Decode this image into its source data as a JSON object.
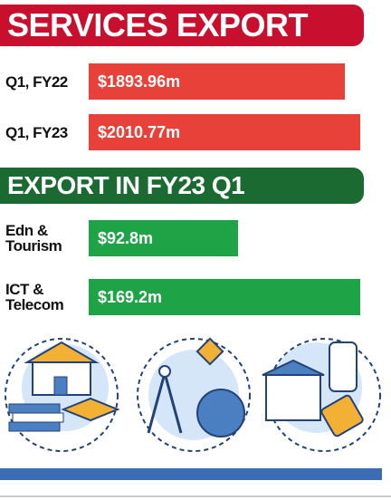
{
  "chart_data": [
    {
      "type": "bar",
      "title": "SERVICES EXPORT",
      "categories": [
        "Q1, FY22",
        "Q1, FY23"
      ],
      "values": [
        1893.96,
        2010.77
      ],
      "value_labels": [
        "$1893.96m",
        "$2010.77m"
      ],
      "color": "#e8413a",
      "title_color": "#c8102e"
    },
    {
      "type": "bar",
      "title": "EXPORT IN FY23 Q1",
      "categories": [
        "Edn & Tourism",
        "ICT & Telecom"
      ],
      "values": [
        92.8,
        169.2
      ],
      "value_labels": [
        "$92.8m",
        "$169.2m"
      ],
      "color": "#1ea446",
      "title_color": "#1b6a32"
    }
  ]
}
